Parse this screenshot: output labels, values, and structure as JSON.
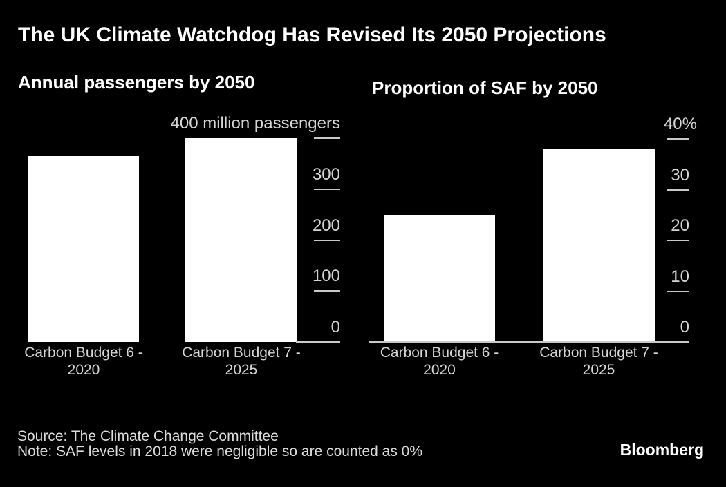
{
  "title": "The UK Climate Watchdog Has Revised Its 2050 Projections",
  "chart_data": [
    {
      "type": "bar",
      "title": "Annual passengers by 2050",
      "categories": [
        "Carbon Budget 6 -\n2020",
        "Carbon Budget 7 -\n2025"
      ],
      "values": [
        365,
        400
      ],
      "ylim": [
        0,
        400
      ],
      "yticks": [
        0,
        100,
        200,
        300
      ],
      "ytick_top": {
        "value": 400,
        "label": "400 million passengers"
      },
      "axis_side": "right",
      "grid": false,
      "legend": "none"
    },
    {
      "type": "bar",
      "title": "Proportion of SAF by 2050",
      "categories": [
        "Carbon Budget 6 -\n2020",
        "Carbon Budget 7 -\n2025"
      ],
      "values": [
        25,
        38
      ],
      "ylim": [
        0,
        40
      ],
      "yticks": [
        0,
        10,
        20,
        30
      ],
      "ytick_top": {
        "value": 40,
        "label": "40%"
      },
      "axis_side": "right",
      "grid": false,
      "legend": "none"
    }
  ],
  "footer": {
    "source": "Source: The Climate Change Committee",
    "note": "Note: SAF levels in 2018 were negligible so are counted as 0%",
    "logo": "Bloomberg"
  },
  "colors": {
    "background": "#000000",
    "bar_fill": "#ffffff",
    "title_text": "#ffffff",
    "axis_text": "#d6d6d6",
    "axis_line": "#c9c9c9"
  }
}
